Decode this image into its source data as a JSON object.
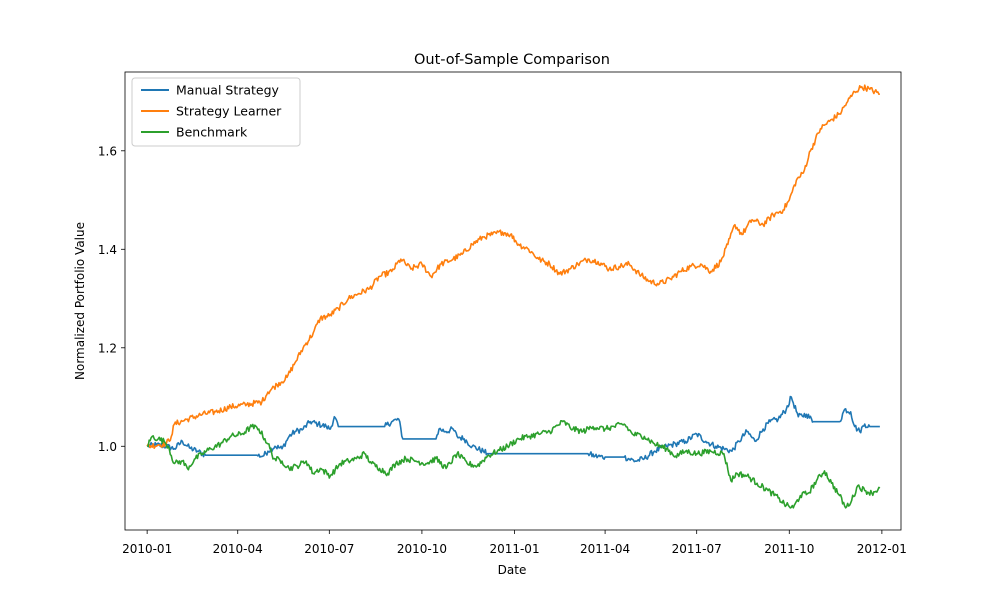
{
  "chart_data": {
    "type": "line",
    "title": "Out-of-Sample Comparison",
    "xlabel": "Date",
    "ylabel": "Normalized Portfolio Value",
    "x_start": "2010-01-01",
    "x_end": "2011-12-30",
    "xlim": [
      "2009-12-10",
      "2012-01-20"
    ],
    "ylim": [
      0.83,
      1.76
    ],
    "x_ticks": [
      {
        "date": "2010-01-01",
        "label": "2010-01"
      },
      {
        "date": "2010-04-01",
        "label": "2010-04"
      },
      {
        "date": "2010-07-01",
        "label": "2010-07"
      },
      {
        "date": "2010-10-01",
        "label": "2010-10"
      },
      {
        "date": "2011-01-01",
        "label": "2011-01"
      },
      {
        "date": "2011-04-01",
        "label": "2011-04"
      },
      {
        "date": "2011-07-01",
        "label": "2011-07"
      },
      {
        "date": "2011-10-01",
        "label": "2011-10"
      },
      {
        "date": "2012-01-01",
        "label": "2012-01"
      }
    ],
    "y_ticks": [
      {
        "value": 1.0,
        "label": "1.0"
      },
      {
        "value": 1.2,
        "label": "1.2"
      },
      {
        "value": 1.4,
        "label": "1.4"
      },
      {
        "value": 1.6,
        "label": "1.6"
      }
    ],
    "legend_position": "top-left",
    "series": [
      {
        "name": "Manual Strategy",
        "color": "#1f77b4",
        "points": [
          [
            "2010-01-01",
            1.0
          ],
          [
            "2010-01-10",
            1.003
          ],
          [
            "2010-01-20",
            1.0
          ],
          [
            "2010-01-28",
            0.995
          ],
          [
            "2010-02-05",
            1.01
          ],
          [
            "2010-02-12",
            0.997
          ],
          [
            "2010-02-20",
            0.99
          ],
          [
            "2010-02-28",
            0.982
          ],
          [
            "2010-03-15",
            0.982
          ],
          [
            "2010-04-01",
            0.982
          ],
          [
            "2010-04-20",
            0.982
          ],
          [
            "2010-04-26",
            0.98
          ],
          [
            "2010-05-01",
            0.99
          ],
          [
            "2010-05-08",
            1.0
          ],
          [
            "2010-05-15",
            0.995
          ],
          [
            "2010-05-22",
            1.02
          ],
          [
            "2010-05-28",
            1.03
          ],
          [
            "2010-06-05",
            1.035
          ],
          [
            "2010-06-12",
            1.05
          ],
          [
            "2010-06-20",
            1.045
          ],
          [
            "2010-06-28",
            1.04
          ],
          [
            "2010-07-02",
            1.035
          ],
          [
            "2010-07-06",
            1.06
          ],
          [
            "2010-07-10",
            1.04
          ],
          [
            "2010-07-20",
            1.04
          ],
          [
            "2010-08-10",
            1.04
          ],
          [
            "2010-08-25",
            1.04
          ],
          [
            "2010-09-01",
            1.05
          ],
          [
            "2010-09-08",
            1.055
          ],
          [
            "2010-09-12",
            1.015
          ],
          [
            "2010-09-25",
            1.015
          ],
          [
            "2010-10-15",
            1.015
          ],
          [
            "2010-10-18",
            1.035
          ],
          [
            "2010-10-25",
            1.03
          ],
          [
            "2010-11-01",
            1.035
          ],
          [
            "2010-11-05",
            1.02
          ],
          [
            "2010-11-12",
            1.015
          ],
          [
            "2010-11-20",
            1.0
          ],
          [
            "2010-12-01",
            0.99
          ],
          [
            "2010-12-05",
            0.985
          ],
          [
            "2010-12-20",
            0.985
          ],
          [
            "2011-02-15",
            0.985
          ],
          [
            "2011-03-15",
            0.985
          ],
          [
            "2011-03-22",
            0.98
          ],
          [
            "2011-04-01",
            0.978
          ],
          [
            "2011-04-20",
            0.978
          ],
          [
            "2011-05-01",
            0.97
          ],
          [
            "2011-05-10",
            0.975
          ],
          [
            "2011-05-20",
            0.99
          ],
          [
            "2011-06-01",
            1.0
          ],
          [
            "2011-06-10",
            1.005
          ],
          [
            "2011-06-20",
            1.01
          ],
          [
            "2011-07-01",
            1.025
          ],
          [
            "2011-07-10",
            1.01
          ],
          [
            "2011-07-20",
            1.0
          ],
          [
            "2011-07-28",
            0.995
          ],
          [
            "2011-08-05",
            0.99
          ],
          [
            "2011-08-12",
            1.01
          ],
          [
            "2011-08-20",
            1.03
          ],
          [
            "2011-08-28",
            1.01
          ],
          [
            "2011-09-05",
            1.035
          ],
          [
            "2011-09-12",
            1.05
          ],
          [
            "2011-09-20",
            1.055
          ],
          [
            "2011-09-28",
            1.075
          ],
          [
            "2011-10-03",
            1.1
          ],
          [
            "2011-10-10",
            1.06
          ],
          [
            "2011-10-18",
            1.065
          ],
          [
            "2011-10-25",
            1.05
          ],
          [
            "2011-11-05",
            1.05
          ],
          [
            "2011-11-20",
            1.05
          ],
          [
            "2011-11-25",
            1.075
          ],
          [
            "2011-12-01",
            1.07
          ],
          [
            "2011-12-05",
            1.04
          ],
          [
            "2011-12-10",
            1.03
          ],
          [
            "2011-12-15",
            1.045
          ],
          [
            "2011-12-20",
            1.04
          ],
          [
            "2011-12-30",
            1.04
          ]
        ]
      },
      {
        "name": "Strategy Learner",
        "color": "#ff7f0e",
        "points": [
          [
            "2010-01-01",
            1.0
          ],
          [
            "2010-01-12",
            1.003
          ],
          [
            "2010-01-20",
            1.005
          ],
          [
            "2010-01-25",
            1.02
          ],
          [
            "2010-01-28",
            1.045
          ],
          [
            "2010-02-10",
            1.055
          ],
          [
            "2010-02-25",
            1.065
          ],
          [
            "2010-03-10",
            1.07
          ],
          [
            "2010-03-25",
            1.08
          ],
          [
            "2010-04-10",
            1.085
          ],
          [
            "2010-04-25",
            1.09
          ],
          [
            "2010-05-01",
            1.11
          ],
          [
            "2010-05-10",
            1.125
          ],
          [
            "2010-05-20",
            1.14
          ],
          [
            "2010-05-28",
            1.17
          ],
          [
            "2010-06-05",
            1.2
          ],
          [
            "2010-06-15",
            1.23
          ],
          [
            "2010-06-22",
            1.26
          ],
          [
            "2010-07-01",
            1.265
          ],
          [
            "2010-07-10",
            1.28
          ],
          [
            "2010-07-20",
            1.3
          ],
          [
            "2010-07-30",
            1.31
          ],
          [
            "2010-08-10",
            1.32
          ],
          [
            "2010-08-20",
            1.345
          ],
          [
            "2010-09-01",
            1.355
          ],
          [
            "2010-09-10",
            1.38
          ],
          [
            "2010-09-20",
            1.36
          ],
          [
            "2010-10-01",
            1.37
          ],
          [
            "2010-10-10",
            1.345
          ],
          [
            "2010-10-20",
            1.37
          ],
          [
            "2010-11-01",
            1.38
          ],
          [
            "2010-11-10",
            1.39
          ],
          [
            "2010-11-20",
            1.41
          ],
          [
            "2010-12-01",
            1.425
          ],
          [
            "2010-12-10",
            1.43
          ],
          [
            "2010-12-20",
            1.435
          ],
          [
            "2010-12-28",
            1.43
          ],
          [
            "2011-01-05",
            1.41
          ],
          [
            "2011-01-15",
            1.4
          ],
          [
            "2011-01-25",
            1.38
          ],
          [
            "2011-02-05",
            1.37
          ],
          [
            "2011-02-15",
            1.35
          ],
          [
            "2011-02-25",
            1.36
          ],
          [
            "2011-03-05",
            1.37
          ],
          [
            "2011-03-15",
            1.38
          ],
          [
            "2011-03-25",
            1.375
          ],
          [
            "2011-04-05",
            1.36
          ],
          [
            "2011-04-15",
            1.365
          ],
          [
            "2011-04-25",
            1.37
          ],
          [
            "2011-05-05",
            1.35
          ],
          [
            "2011-05-15",
            1.335
          ],
          [
            "2011-05-25",
            1.33
          ],
          [
            "2011-06-05",
            1.34
          ],
          [
            "2011-06-15",
            1.355
          ],
          [
            "2011-06-25",
            1.365
          ],
          [
            "2011-07-05",
            1.37
          ],
          [
            "2011-07-15",
            1.355
          ],
          [
            "2011-07-25",
            1.375
          ],
          [
            "2011-08-01",
            1.41
          ],
          [
            "2011-08-08",
            1.45
          ],
          [
            "2011-08-15",
            1.43
          ],
          [
            "2011-08-25",
            1.46
          ],
          [
            "2011-09-05",
            1.45
          ],
          [
            "2011-09-15",
            1.47
          ],
          [
            "2011-09-25",
            1.48
          ],
          [
            "2011-10-01",
            1.5
          ],
          [
            "2011-10-08",
            1.54
          ],
          [
            "2011-10-15",
            1.555
          ],
          [
            "2011-10-22",
            1.6
          ],
          [
            "2011-11-01",
            1.645
          ],
          [
            "2011-11-10",
            1.66
          ],
          [
            "2011-11-20",
            1.675
          ],
          [
            "2011-11-28",
            1.7
          ],
          [
            "2011-12-05",
            1.72
          ],
          [
            "2011-12-12",
            1.73
          ],
          [
            "2011-12-20",
            1.725
          ],
          [
            "2011-12-30",
            1.715
          ]
        ]
      },
      {
        "name": "Benchmark",
        "color": "#2ca02c",
        "points": [
          [
            "2010-01-01",
            1.0
          ],
          [
            "2010-01-06",
            1.02
          ],
          [
            "2010-01-12",
            1.015
          ],
          [
            "2010-01-18",
            1.01
          ],
          [
            "2010-01-22",
            1.0
          ],
          [
            "2010-01-28",
            0.965
          ],
          [
            "2010-02-05",
            0.97
          ],
          [
            "2010-02-10",
            0.955
          ],
          [
            "2010-02-18",
            0.975
          ],
          [
            "2010-02-25",
            0.985
          ],
          [
            "2010-03-05",
            0.995
          ],
          [
            "2010-03-15",
            1.005
          ],
          [
            "2010-03-25",
            1.02
          ],
          [
            "2010-04-05",
            1.025
          ],
          [
            "2010-04-15",
            1.04
          ],
          [
            "2010-04-22",
            1.035
          ],
          [
            "2010-05-01",
            1.005
          ],
          [
            "2010-05-07",
            0.975
          ],
          [
            "2010-05-15",
            0.97
          ],
          [
            "2010-05-22",
            0.955
          ],
          [
            "2010-05-30",
            0.96
          ],
          [
            "2010-06-08",
            0.97
          ],
          [
            "2010-06-15",
            0.945
          ],
          [
            "2010-06-22",
            0.955
          ],
          [
            "2010-07-02",
            0.94
          ],
          [
            "2010-07-12",
            0.965
          ],
          [
            "2010-07-20",
            0.97
          ],
          [
            "2010-07-28",
            0.975
          ],
          [
            "2010-08-05",
            0.985
          ],
          [
            "2010-08-12",
            0.965
          ],
          [
            "2010-08-20",
            0.955
          ],
          [
            "2010-08-28",
            0.945
          ],
          [
            "2010-09-05",
            0.965
          ],
          [
            "2010-09-15",
            0.975
          ],
          [
            "2010-09-25",
            0.97
          ],
          [
            "2010-10-05",
            0.965
          ],
          [
            "2010-10-15",
            0.975
          ],
          [
            "2010-10-25",
            0.955
          ],
          [
            "2010-11-05",
            0.985
          ],
          [
            "2010-11-15",
            0.965
          ],
          [
            "2010-11-25",
            0.96
          ],
          [
            "2010-12-05",
            0.98
          ],
          [
            "2010-12-15",
            0.99
          ],
          [
            "2010-12-25",
            1.0
          ],
          [
            "2011-01-05",
            1.015
          ],
          [
            "2011-01-15",
            1.02
          ],
          [
            "2011-01-25",
            1.025
          ],
          [
            "2011-02-05",
            1.03
          ],
          [
            "2011-02-18",
            1.05
          ],
          [
            "2011-02-28",
            1.035
          ],
          [
            "2011-03-10",
            1.03
          ],
          [
            "2011-03-20",
            1.04
          ],
          [
            "2011-04-01",
            1.035
          ],
          [
            "2011-04-10",
            1.04
          ],
          [
            "2011-04-20",
            1.045
          ],
          [
            "2011-04-28",
            1.025
          ],
          [
            "2011-05-10",
            1.02
          ],
          [
            "2011-05-20",
            1.005
          ],
          [
            "2011-06-01",
            0.995
          ],
          [
            "2011-06-10",
            0.98
          ],
          [
            "2011-06-20",
            0.99
          ],
          [
            "2011-07-01",
            0.985
          ],
          [
            "2011-07-15",
            0.99
          ],
          [
            "2011-07-28",
            0.985
          ],
          [
            "2011-08-04",
            0.93
          ],
          [
            "2011-08-10",
            0.945
          ],
          [
            "2011-08-20",
            0.94
          ],
          [
            "2011-08-30",
            0.925
          ],
          [
            "2011-09-10",
            0.91
          ],
          [
            "2011-09-20",
            0.895
          ],
          [
            "2011-09-28",
            0.88
          ],
          [
            "2011-10-05",
            0.875
          ],
          [
            "2011-10-12",
            0.9
          ],
          [
            "2011-10-20",
            0.905
          ],
          [
            "2011-10-28",
            0.93
          ],
          [
            "2011-11-05",
            0.95
          ],
          [
            "2011-11-12",
            0.925
          ],
          [
            "2011-11-20",
            0.9
          ],
          [
            "2011-11-26",
            0.875
          ],
          [
            "2011-12-02",
            0.89
          ],
          [
            "2011-12-08",
            0.92
          ],
          [
            "2011-12-15",
            0.91
          ],
          [
            "2011-12-22",
            0.905
          ],
          [
            "2011-12-30",
            0.915
          ]
        ]
      }
    ]
  }
}
